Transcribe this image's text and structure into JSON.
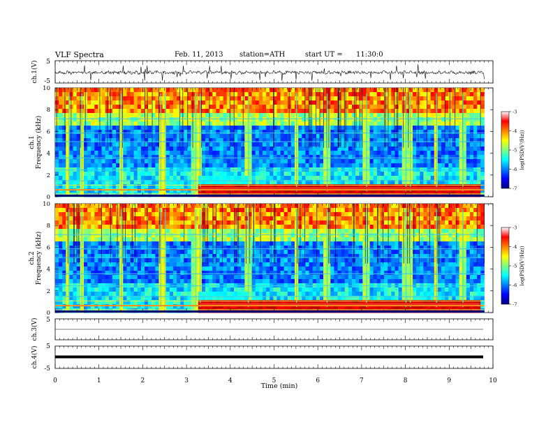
{
  "header": {
    "title": "VLF Spectra",
    "date": "Feb. 11, 2013",
    "station": "station=ATH",
    "start_label": "start UT =",
    "start_time": "11:30:0"
  },
  "chart_data": [
    {
      "type": "line",
      "id": "ch1-waveform",
      "ylabel": "ch.1(V)",
      "ylim": [
        -5,
        5
      ],
      "yticks": [
        "5",
        "-5"
      ],
      "xlim": [
        0,
        10
      ],
      "baseline": 0
    },
    {
      "type": "heatmap",
      "id": "ch1-spectrogram",
      "ylabel_top": "ch.1",
      "ylabel": "Frequency (kHz)",
      "ylim": [
        0,
        10
      ],
      "yticks": [
        "0",
        "2",
        "4",
        "6",
        "8",
        "10"
      ],
      "xlim": [
        0,
        9.8
      ],
      "colorbar": {
        "label": "log(PSD(V²/Hz))",
        "range": [
          -7,
          -3
        ],
        "ticks": [
          "-3",
          "-4",
          "-5",
          "-6",
          "-7"
        ]
      }
    },
    {
      "type": "heatmap",
      "id": "ch2-spectrogram",
      "ylabel_top": "ch.2",
      "ylabel": "Frequency (kHz)",
      "ylim": [
        0,
        10
      ],
      "yticks": [
        "0",
        "2",
        "4",
        "6",
        "8",
        "10"
      ],
      "xlim": [
        0,
        9.8
      ],
      "colorbar": {
        "label": "log(PSD(V²/Hz))",
        "range": [
          -7,
          -3
        ],
        "ticks": [
          "-3",
          "-4",
          "-5",
          "-6",
          "-7"
        ]
      }
    },
    {
      "type": "line",
      "id": "ch3-waveform",
      "ylabel": "ch.3(V)",
      "ylim": [
        -5,
        5
      ],
      "yticks": [
        "5"
      ],
      "baseline": 0
    },
    {
      "type": "line",
      "id": "ch4-waveform",
      "ylabel": "ch.4(V)",
      "ylim": [
        -5,
        5
      ],
      "yticks": [
        "5",
        "-5"
      ],
      "baseline": 0
    }
  ],
  "xaxis": {
    "label": "Time (min)",
    "ticks": [
      "0",
      "1",
      "2",
      "3",
      "4",
      "5",
      "6",
      "7",
      "8",
      "9",
      "10"
    ],
    "range": [
      0,
      10
    ]
  },
  "colors": {
    "jet_scale": [
      "#00007f",
      "#0000ff",
      "#007fff",
      "#00ffff",
      "#7fff7f",
      "#ffff00",
      "#ff7f00",
      "#ff0000",
      "#7f0000"
    ],
    "trace": "#000000"
  }
}
